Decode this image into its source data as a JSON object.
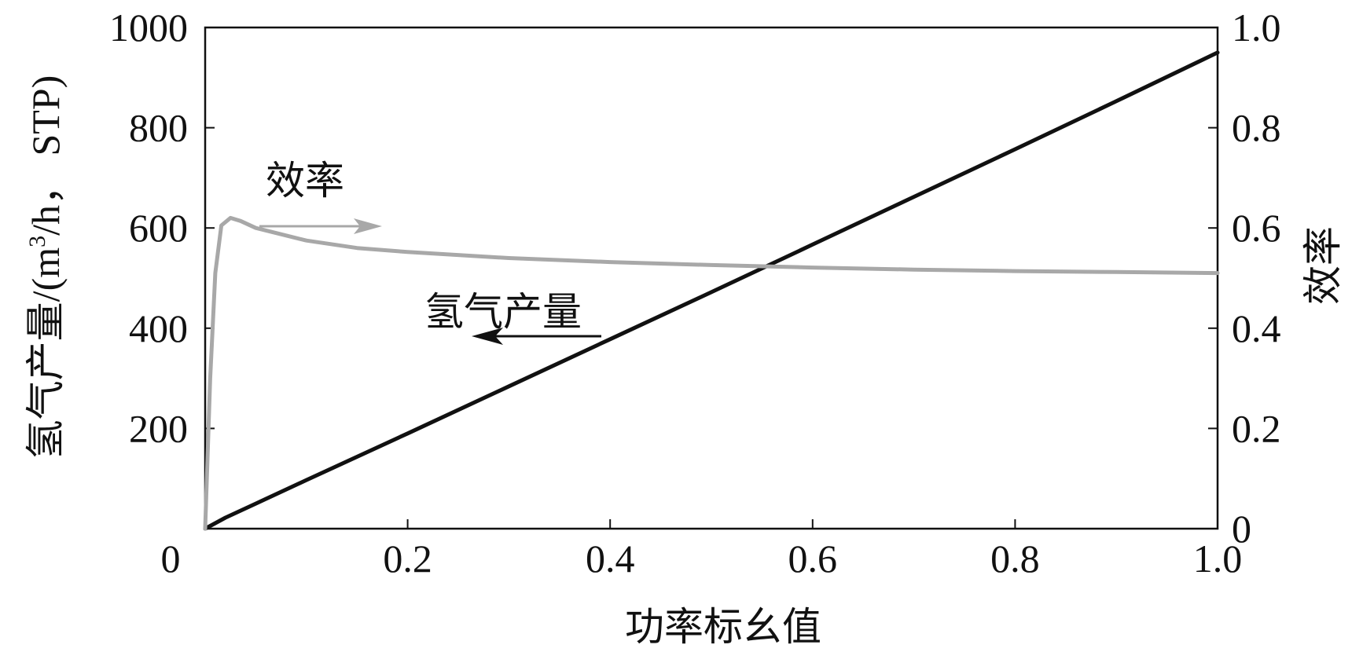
{
  "chart_data": {
    "type": "line",
    "xlabel": "功率标幺值",
    "ylabel_left": {
      "prefix": "氢气产量/(m",
      "sup": "3",
      "suffix": "/h， STP)"
    },
    "ylabel_right": "效率",
    "xlim": [
      0,
      1.0
    ],
    "ylim_left": [
      0,
      1000
    ],
    "ylim_right": [
      0,
      1.0
    ],
    "x_ticks": [
      "0",
      "0.2",
      "0.4",
      "0.6",
      "0.8",
      "1.0"
    ],
    "y_left_ticks": [
      "200",
      "400",
      "600",
      "800",
      "1000"
    ],
    "y_right_ticks": [
      "0",
      "0.2",
      "0.4",
      "0.6",
      "0.8",
      "1.0"
    ],
    "grid": false,
    "series": [
      {
        "name": "氢气产量",
        "axis": "left",
        "color": "#111111",
        "x": [
          0,
          0.02,
          0.05,
          0.1,
          0.2,
          0.3,
          0.4,
          0.5,
          0.6,
          0.7,
          0.8,
          0.9,
          1.0
        ],
        "y": [
          0,
          22,
          50,
          97,
          190,
          284,
          378,
          472,
          567,
          662,
          757,
          853,
          950
        ]
      },
      {
        "name": "效率",
        "axis": "right",
        "color": "#a8a8a8",
        "x": [
          0,
          0.005,
          0.01,
          0.016,
          0.025,
          0.035,
          0.05,
          0.08,
          0.1,
          0.15,
          0.2,
          0.3,
          0.4,
          0.5,
          0.6,
          0.7,
          0.8,
          0.9,
          1.0
        ],
        "y": [
          0,
          0.3,
          0.51,
          0.605,
          0.62,
          0.614,
          0.6,
          0.585,
          0.575,
          0.56,
          0.552,
          0.54,
          0.532,
          0.526,
          0.521,
          0.517,
          0.514,
          0.512,
          0.51
        ]
      }
    ],
    "annotations": {
      "efficiency_label": "效率",
      "hydrogen_label": "氢气产量"
    }
  }
}
